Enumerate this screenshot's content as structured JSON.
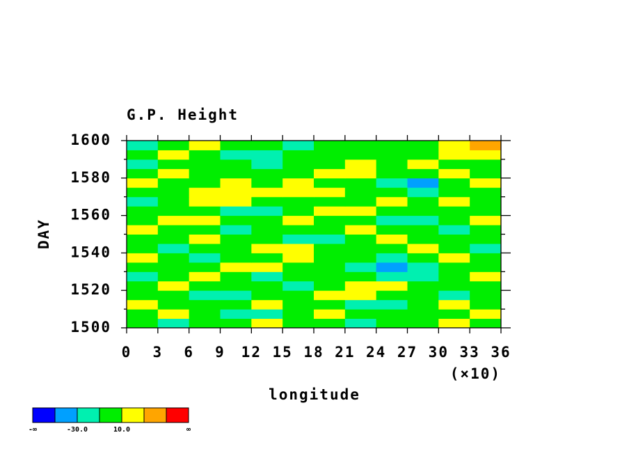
{
  "chart_data": {
    "type": "contourf",
    "title": "G.P. Height",
    "xlabel": "longitude",
    "ylabel": "DAY",
    "x_note": "(×10)",
    "xlim": [
      0,
      36
    ],
    "xticks": [
      0,
      3,
      6,
      9,
      12,
      15,
      18,
      21,
      24,
      27,
      30,
      33,
      36
    ],
    "ylim": [
      1500,
      1600
    ],
    "yticks": [
      1500,
      1520,
      1540,
      1560,
      1580,
      1600
    ],
    "yminor": [
      1510,
      1530,
      1550,
      1570,
      1590
    ],
    "x": [
      1.5,
      4.5,
      7.5,
      10.5,
      13.5,
      16.5,
      19.5,
      22.5,
      25.5,
      28.5,
      31.5,
      34.5
    ],
    "y": [
      1502.5,
      1507.5,
      1512.5,
      1517.5,
      1522.5,
      1527.5,
      1532.5,
      1537.5,
      1542.5,
      1547.5,
      1552.5,
      1557.5,
      1562.5,
      1567.5,
      1572.5,
      1577.5,
      1582.5,
      1587.5,
      1592.5,
      1597.5
    ],
    "z": [
      [
        0,
        -15,
        0,
        0,
        15,
        0,
        0,
        -15,
        0,
        0,
        15,
        0
      ],
      [
        0,
        15,
        0,
        -15,
        -15,
        0,
        15,
        0,
        0,
        0,
        0,
        15
      ],
      [
        15,
        0,
        0,
        0,
        15,
        0,
        0,
        -15,
        -15,
        0,
        15,
        0
      ],
      [
        0,
        0,
        -15,
        -15,
        0,
        0,
        15,
        15,
        0,
        0,
        -15,
        0
      ],
      [
        0,
        15,
        0,
        0,
        0,
        -15,
        0,
        15,
        15,
        0,
        0,
        0
      ],
      [
        -15,
        0,
        15,
        0,
        -15,
        0,
        0,
        0,
        -15,
        -15,
        0,
        15
      ],
      [
        0,
        0,
        0,
        15,
        15,
        0,
        0,
        -15,
        -35,
        -15,
        0,
        0
      ],
      [
        15,
        0,
        -15,
        0,
        0,
        15,
        0,
        0,
        -15,
        0,
        15,
        0
      ],
      [
        0,
        -15,
        0,
        0,
        15,
        15,
        0,
        0,
        0,
        15,
        0,
        -15
      ],
      [
        0,
        0,
        15,
        0,
        0,
        -15,
        -15,
        0,
        15,
        0,
        0,
        0
      ],
      [
        15,
        0,
        0,
        -15,
        0,
        0,
        0,
        15,
        0,
        0,
        -15,
        0
      ],
      [
        0,
        15,
        15,
        0,
        0,
        15,
        0,
        0,
        -15,
        -15,
        0,
        15
      ],
      [
        0,
        0,
        0,
        -15,
        -15,
        0,
        15,
        15,
        0,
        0,
        0,
        0
      ],
      [
        -15,
        0,
        15,
        15,
        0,
        0,
        0,
        0,
        15,
        0,
        15,
        0
      ],
      [
        0,
        0,
        15,
        15,
        15,
        15,
        15,
        0,
        0,
        -15,
        0,
        0
      ],
      [
        15,
        0,
        0,
        15,
        0,
        15,
        0,
        0,
        -15,
        -35,
        0,
        15
      ],
      [
        0,
        15,
        0,
        0,
        0,
        0,
        15,
        15,
        0,
        0,
        15,
        0
      ],
      [
        -15,
        0,
        0,
        0,
        -15,
        0,
        0,
        15,
        0,
        15,
        0,
        0
      ],
      [
        0,
        15,
        0,
        -15,
        -15,
        0,
        0,
        0,
        0,
        0,
        15,
        15
      ],
      [
        -15,
        0,
        15,
        0,
        0,
        -15,
        0,
        0,
        0,
        0,
        15,
        35
      ]
    ],
    "levels": [
      -50,
      -30,
      -10,
      10,
      30,
      50
    ],
    "colors": [
      "#0000ff",
      "#00a0ff",
      "#00f0b0",
      "#00ee00",
      "#ffff00",
      "#ffa500",
      "#ff0000"
    ],
    "colorbar_labels": [
      "-∞",
      null,
      "-30.0",
      null,
      "10.0",
      null,
      null,
      "∞"
    ]
  }
}
